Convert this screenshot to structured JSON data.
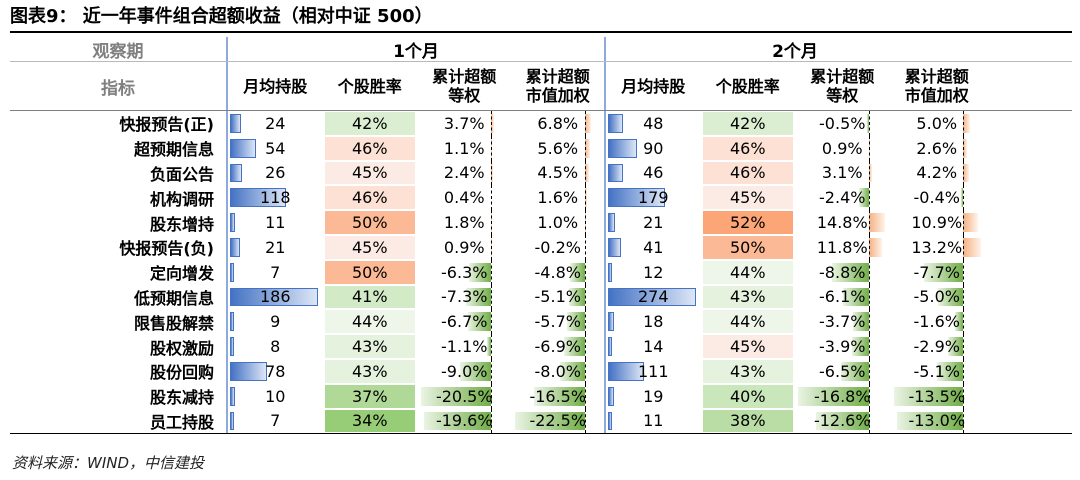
{
  "title": "图表9：   近一年事件组合超额收益（相对中证 500）",
  "source": "资料来源：WIND，中信建投",
  "header": {
    "period_label": "观察期",
    "metric_label": "指标",
    "groups": [
      "1个月",
      "2个月"
    ],
    "columns": [
      "月均持股",
      "个股胜率",
      "累计超额\n等权",
      "累计超额\n市值加权",
      "月均持股",
      "个股胜率",
      "累计超额\n等权",
      "累计超额\n市值加权"
    ]
  },
  "colors": {
    "accent_line": "#8eaadb",
    "bar_blue": "#4472c4",
    "positive": "#f4b183",
    "negative": "#70ad47"
  },
  "rows": [
    {
      "name": "快报预告(正)",
      "m1": {
        "hold": 24,
        "win": "42%",
        "eq": "3.7%",
        "mv": "6.8%"
      },
      "m2": {
        "hold": 48,
        "win": "42%",
        "eq": "-0.5%",
        "mv": "5.0%"
      }
    },
    {
      "name": "超预期信息",
      "m1": {
        "hold": 54,
        "win": "46%",
        "eq": "1.1%",
        "mv": "5.6%"
      },
      "m2": {
        "hold": 90,
        "win": "46%",
        "eq": "0.9%",
        "mv": "2.6%"
      }
    },
    {
      "name": "负面公告",
      "m1": {
        "hold": 26,
        "win": "45%",
        "eq": "2.4%",
        "mv": "4.5%"
      },
      "m2": {
        "hold": 46,
        "win": "46%",
        "eq": "3.1%",
        "mv": "4.2%"
      }
    },
    {
      "name": "机构调研",
      "m1": {
        "hold": 118,
        "win": "46%",
        "eq": "0.4%",
        "mv": "1.6%"
      },
      "m2": {
        "hold": 179,
        "win": "45%",
        "eq": "-2.4%",
        "mv": "-0.4%"
      }
    },
    {
      "name": "股东增持",
      "m1": {
        "hold": 11,
        "win": "50%",
        "eq": "1.8%",
        "mv": "1.0%"
      },
      "m2": {
        "hold": 21,
        "win": "52%",
        "eq": "14.8%",
        "mv": "10.9%"
      }
    },
    {
      "name": "快报预告(负)",
      "m1": {
        "hold": 21,
        "win": "45%",
        "eq": "0.9%",
        "mv": "-0.2%"
      },
      "m2": {
        "hold": 41,
        "win": "50%",
        "eq": "11.8%",
        "mv": "13.2%"
      }
    },
    {
      "name": "定向增发",
      "m1": {
        "hold": 7,
        "win": "50%",
        "eq": "-6.3%",
        "mv": "-4.8%"
      },
      "m2": {
        "hold": 12,
        "win": "44%",
        "eq": "-8.8%",
        "mv": "-7.7%"
      }
    },
    {
      "name": "低预期信息",
      "m1": {
        "hold": 186,
        "win": "41%",
        "eq": "-7.3%",
        "mv": "-5.1%"
      },
      "m2": {
        "hold": 274,
        "win": "43%",
        "eq": "-6.1%",
        "mv": "-5.0%"
      }
    },
    {
      "name": "限售股解禁",
      "m1": {
        "hold": 9,
        "win": "44%",
        "eq": "-6.7%",
        "mv": "-5.7%"
      },
      "m2": {
        "hold": 18,
        "win": "44%",
        "eq": "-3.7%",
        "mv": "-1.6%"
      }
    },
    {
      "name": "股权激励",
      "m1": {
        "hold": 8,
        "win": "43%",
        "eq": "-1.1%",
        "mv": "-6.9%"
      },
      "m2": {
        "hold": 14,
        "win": "45%",
        "eq": "-3.9%",
        "mv": "-2.9%"
      }
    },
    {
      "name": "股份回购",
      "m1": {
        "hold": 78,
        "win": "43%",
        "eq": "-9.0%",
        "mv": "-8.0%"
      },
      "m2": {
        "hold": 111,
        "win": "43%",
        "eq": "-6.5%",
        "mv": "-5.1%"
      }
    },
    {
      "name": "股东减持",
      "m1": {
        "hold": 10,
        "win": "37%",
        "eq": "-20.5%",
        "mv": "-16.5%"
      },
      "m2": {
        "hold": 19,
        "win": "40%",
        "eq": "-16.8%",
        "mv": "-13.5%"
      }
    },
    {
      "name": "员工持股",
      "m1": {
        "hold": 7,
        "win": "34%",
        "eq": "-19.6%",
        "mv": "-22.5%"
      },
      "m2": {
        "hold": 11,
        "win": "38%",
        "eq": "-12.6%",
        "mv": "-13.0%"
      }
    }
  ]
}
